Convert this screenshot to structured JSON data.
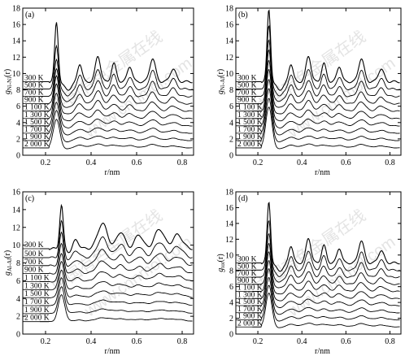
{
  "watermark": [
    "中国有色金属在线",
    "www.cnnmol.com"
  ],
  "chart_data": [
    {
      "type": "line",
      "panel": "(a)",
      "ylabel": "g_{Ni-Ni}(r)",
      "ylabel_main": "g",
      "ylabel_sub": "Ni-Ni",
      "ylabel_tail": "(r)",
      "xlabel": "r/nm",
      "xlim": [
        0.1,
        0.85
      ],
      "ylim": [
        0,
        18
      ],
      "xticks": [
        0.2,
        0.4,
        0.6,
        0.8
      ],
      "yticks": [
        0,
        2,
        4,
        6,
        8,
        10,
        12,
        14,
        16,
        18
      ],
      "series_labels": [
        "300 K",
        "500 K",
        "700 K",
        "900 K",
        "1 100 K",
        "1 300 K",
        "1 500 K",
        "1 700 K",
        "1 900 K",
        "2 000 K"
      ],
      "baselines": [
        9.0,
        8.1,
        7.2,
        6.3,
        5.4,
        4.5,
        3.6,
        2.7,
        1.8,
        0.9
      ],
      "peak_heights": [
        16.3,
        13.5,
        11.8,
        10.6,
        9.7,
        8.7,
        7.6,
        6.5,
        5.5,
        4.4
      ],
      "peak_r": 0.248
    },
    {
      "type": "line",
      "panel": "(b)",
      "ylabel": "g_{Ni-Al}(r)",
      "ylabel_main": "g",
      "ylabel_sub": "Ni-Al",
      "ylabel_tail": "(r)",
      "xlabel": "r/nm",
      "xlim": [
        0.1,
        0.85
      ],
      "ylim": [
        0,
        18
      ],
      "xticks": [
        0.2,
        0.4,
        0.6,
        0.8
      ],
      "yticks": [
        0,
        2,
        4,
        6,
        8,
        10,
        12,
        14,
        16,
        18
      ],
      "series_labels": [
        "300 K",
        "500 K",
        "700 K",
        "900 K",
        "1 100 K",
        "1 300 K",
        "1 500 K",
        "1 700 K",
        "1 900 K",
        "2 000 K"
      ],
      "baselines": [
        9.0,
        8.1,
        7.2,
        6.3,
        5.4,
        4.5,
        3.6,
        2.7,
        1.8,
        0.9
      ],
      "peak_heights": [
        17.9,
        16.0,
        14.2,
        12.9,
        11.6,
        10.5,
        9.3,
        8.2,
        7.0,
        5.9
      ],
      "peak_r": 0.25
    },
    {
      "type": "line",
      "panel": "(c)",
      "ylabel": "g_{Al-Al}(r)",
      "ylabel_main": "g",
      "ylabel_sub": "Al-Al",
      "ylabel_tail": "(r)",
      "xlabel": "r/nm",
      "xlim": [
        0.1,
        0.85
      ],
      "ylim": [
        0,
        16
      ],
      "xticks": [
        0.2,
        0.4,
        0.6,
        0.8
      ],
      "yticks": [
        0,
        2,
        4,
        6,
        8,
        10,
        12,
        14,
        16
      ],
      "series_labels": [
        "300 K",
        "500 K",
        "700 K",
        "900 K",
        "1 100 K",
        "1 300 K",
        "1 500 K",
        "1 700 K",
        "1 900 K",
        "2 000 K"
      ],
      "baselines": [
        9.6,
        8.6,
        7.7,
        6.8,
        5.9,
        5.0,
        4.1,
        3.2,
        2.3,
        1.4
      ],
      "peak_heights": [
        14.5,
        12.7,
        11.4,
        10.2,
        9.1,
        8.2,
        7.2,
        6.3,
        5.3,
        4.4
      ],
      "peak_r": 0.27
    },
    {
      "type": "line",
      "panel": "(d)",
      "ylabel": "g_{tot}(r)",
      "ylabel_main": "g",
      "ylabel_sub": "tot",
      "ylabel_tail": "(r)",
      "xlabel": "r/nm",
      "xlim": [
        0.1,
        0.85
      ],
      "ylim": [
        0,
        18
      ],
      "xticks": [
        0.2,
        0.4,
        0.6,
        0.8
      ],
      "yticks": [
        0,
        2,
        4,
        6,
        8,
        10,
        12,
        14,
        16,
        18
      ],
      "series_labels": [
        "300 K",
        "500 K",
        "700 K",
        "900 K",
        "1 100 K",
        "1 300 K",
        "1 500 K",
        "1 700 K",
        "1 900 K",
        "2 000 K"
      ],
      "baselines": [
        9.0,
        8.1,
        7.2,
        6.3,
        5.4,
        4.5,
        3.6,
        2.7,
        1.8,
        0.9
      ],
      "peak_heights": [
        16.8,
        14.5,
        12.8,
        11.5,
        10.4,
        9.3,
        8.3,
        7.2,
        6.2,
        5.2
      ],
      "peak_r": 0.25
    }
  ]
}
